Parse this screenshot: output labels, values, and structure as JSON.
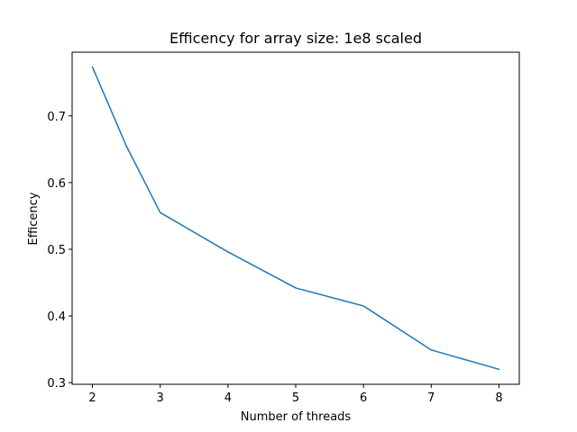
{
  "chart_data": {
    "type": "line",
    "title": "Efficency for array size: 1e8 scaled",
    "xlabel": "Number of threads",
    "ylabel": "Efficency",
    "x": [
      2,
      2.5,
      3,
      4,
      5,
      6,
      7,
      8
    ],
    "series": [
      {
        "values": [
          0.773,
          0.655,
          0.555,
          0.496,
          0.442,
          0.415,
          0.349,
          0.32
        ],
        "color": "#1f77b4"
      }
    ],
    "xlim": [
      1.7,
      8.3
    ],
    "ylim": [
      0.2975,
      0.7955
    ],
    "xticks": [
      2,
      3,
      4,
      5,
      6,
      7,
      8
    ],
    "yticks": [
      0.3,
      0.4,
      0.5,
      0.6,
      0.7
    ],
    "ytick_labels": [
      "0.3",
      "0.4",
      "0.5",
      "0.6",
      "0.7"
    ],
    "grid": false,
    "legend": "none"
  }
}
